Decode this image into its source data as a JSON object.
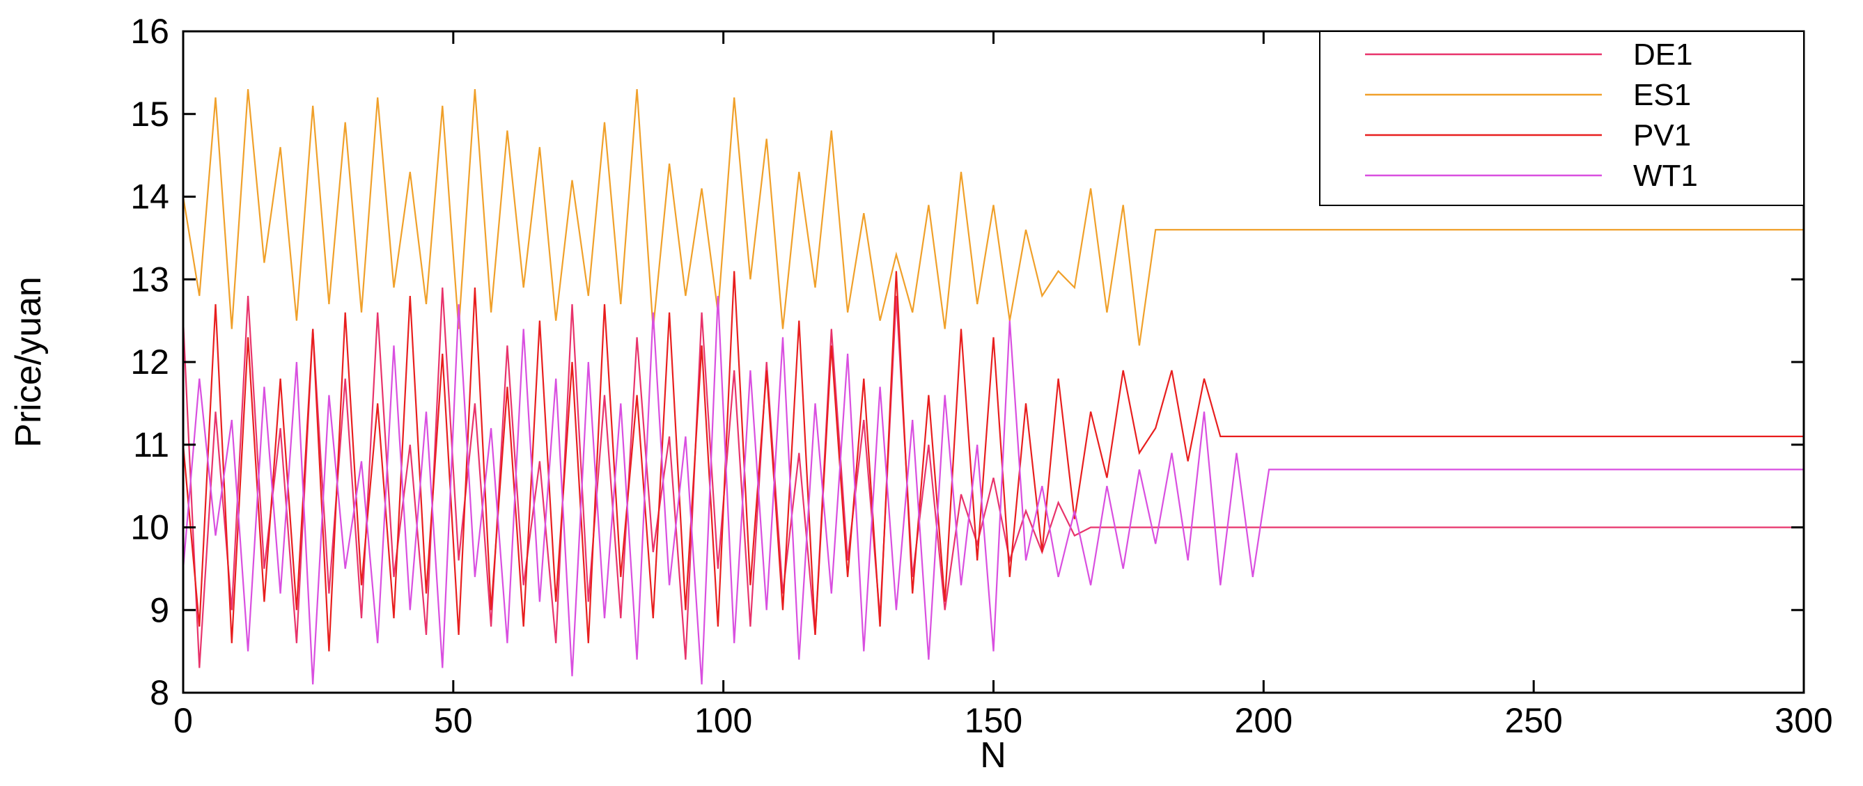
{
  "chart_data": {
    "type": "line",
    "xlabel": "N",
    "ylabel": "Price/yuan",
    "xlim": [
      0,
      300
    ],
    "ylim": [
      8,
      16
    ],
    "xticks": [
      0,
      50,
      100,
      150,
      200,
      250,
      300
    ],
    "yticks": [
      8,
      9,
      10,
      11,
      12,
      13,
      14,
      15,
      16
    ],
    "grid": false,
    "legend_position": "top-right",
    "series": [
      {
        "name": "DE1",
        "color": "#e8336b",
        "x": [
          0,
          3,
          6,
          9,
          12,
          15,
          18,
          21,
          24,
          27,
          30,
          33,
          36,
          39,
          42,
          45,
          48,
          51,
          54,
          57,
          60,
          63,
          66,
          69,
          72,
          75,
          78,
          81,
          84,
          87,
          90,
          93,
          96,
          99,
          102,
          105,
          108,
          111,
          114,
          117,
          120,
          123,
          126,
          129,
          132,
          135,
          138,
          141,
          144,
          147,
          150,
          153,
          156,
          159,
          162,
          165,
          168,
          171,
          174,
          177,
          180,
          190,
          200,
          250,
          300
        ],
        "values": [
          12.5,
          8.3,
          11.4,
          9.0,
          12.8,
          9.5,
          11.2,
          8.6,
          12.4,
          9.2,
          11.8,
          8.9,
          12.6,
          9.4,
          11.0,
          8.7,
          12.9,
          9.6,
          11.5,
          8.8,
          12.2,
          9.3,
          10.8,
          8.6,
          12.7,
          9.1,
          11.6,
          8.9,
          12.3,
          9.7,
          11.1,
          8.4,
          12.6,
          9.5,
          11.9,
          8.8,
          12.0,
          9.2,
          10.9,
          8.7,
          12.4,
          9.6,
          11.3,
          8.9,
          12.8,
          9.4,
          11.0,
          9.0,
          10.4,
          9.8,
          10.6,
          9.6,
          10.2,
          9.7,
          10.3,
          9.9,
          10.0,
          10.0,
          10.0,
          10.0,
          10.0,
          10.0,
          10.0,
          10.0,
          10.0
        ]
      },
      {
        "name": "ES1",
        "color": "#f0a02a",
        "x": [
          0,
          3,
          6,
          9,
          12,
          15,
          18,
          21,
          24,
          27,
          30,
          33,
          36,
          39,
          42,
          45,
          48,
          51,
          54,
          57,
          60,
          63,
          66,
          69,
          72,
          75,
          78,
          81,
          84,
          87,
          90,
          93,
          96,
          99,
          102,
          105,
          108,
          111,
          114,
          117,
          120,
          123,
          126,
          129,
          132,
          135,
          138,
          141,
          144,
          147,
          150,
          153,
          156,
          159,
          162,
          165,
          168,
          171,
          174,
          177,
          180,
          190,
          200,
          250,
          300
        ],
        "values": [
          14.0,
          12.8,
          15.2,
          12.4,
          15.3,
          13.2,
          14.6,
          12.5,
          15.1,
          12.7,
          14.9,
          12.6,
          15.2,
          12.9,
          14.3,
          12.7,
          15.1,
          12.4,
          15.3,
          12.6,
          14.8,
          12.9,
          14.6,
          12.5,
          14.2,
          12.8,
          14.9,
          12.7,
          15.3,
          12.4,
          14.4,
          12.8,
          14.1,
          12.6,
          15.2,
          13.0,
          14.7,
          12.4,
          14.3,
          12.9,
          14.8,
          12.6,
          13.8,
          12.5,
          13.3,
          12.6,
          13.9,
          12.4,
          14.3,
          12.7,
          13.9,
          12.5,
          13.6,
          12.8,
          13.1,
          12.9,
          14.1,
          12.6,
          13.9,
          12.2,
          13.6,
          13.6,
          13.6,
          13.6,
          13.6
        ]
      },
      {
        "name": "PV1",
        "color": "#e81e1e",
        "x": [
          0,
          3,
          6,
          9,
          12,
          15,
          18,
          21,
          24,
          27,
          30,
          33,
          36,
          39,
          42,
          45,
          48,
          51,
          54,
          57,
          60,
          63,
          66,
          69,
          72,
          75,
          78,
          81,
          84,
          87,
          90,
          93,
          96,
          99,
          102,
          105,
          108,
          111,
          114,
          117,
          120,
          123,
          126,
          129,
          132,
          135,
          138,
          141,
          144,
          147,
          150,
          153,
          156,
          159,
          162,
          165,
          168,
          171,
          174,
          177,
          180,
          183,
          186,
          189,
          192,
          200,
          250,
          300
        ],
        "values": [
          11.0,
          8.8,
          12.7,
          8.6,
          12.3,
          9.1,
          11.8,
          9.0,
          12.4,
          8.5,
          12.6,
          9.3,
          11.5,
          8.9,
          12.8,
          9.2,
          12.1,
          8.7,
          12.9,
          9.0,
          11.7,
          8.8,
          12.5,
          9.1,
          12.0,
          8.6,
          12.7,
          9.4,
          11.6,
          8.9,
          12.6,
          9.0,
          12.2,
          8.8,
          13.1,
          9.3,
          11.9,
          9.0,
          12.5,
          8.7,
          12.2,
          9.4,
          11.8,
          8.8,
          13.1,
          9.2,
          11.6,
          9.1,
          12.4,
          9.6,
          12.3,
          9.4,
          11.5,
          9.7,
          11.8,
          10.1,
          11.4,
          10.6,
          11.9,
          10.9,
          11.2,
          11.9,
          10.8,
          11.8,
          11.1,
          11.1,
          11.1,
          11.1
        ]
      },
      {
        "name": "WT1",
        "color": "#d94fe0",
        "x": [
          0,
          3,
          6,
          9,
          12,
          15,
          18,
          21,
          24,
          27,
          30,
          33,
          36,
          39,
          42,
          45,
          48,
          51,
          54,
          57,
          60,
          63,
          66,
          69,
          72,
          75,
          78,
          81,
          84,
          87,
          90,
          93,
          96,
          99,
          102,
          105,
          108,
          111,
          114,
          117,
          120,
          123,
          126,
          129,
          132,
          135,
          138,
          141,
          144,
          147,
          150,
          153,
          156,
          159,
          162,
          165,
          168,
          171,
          174,
          177,
          180,
          183,
          186,
          189,
          192,
          195,
          198,
          201,
          250,
          300
        ],
        "values": [
          9.5,
          11.8,
          9.9,
          11.3,
          8.5,
          11.7,
          9.2,
          12.0,
          8.1,
          11.6,
          9.5,
          10.8,
          8.6,
          12.2,
          9.0,
          11.4,
          8.3,
          12.7,
          9.4,
          11.2,
          8.6,
          12.4,
          9.1,
          11.8,
          8.2,
          12.0,
          8.9,
          11.5,
          8.4,
          12.6,
          9.3,
          11.1,
          8.1,
          12.8,
          8.6,
          11.9,
          9.0,
          12.3,
          8.4,
          11.5,
          9.2,
          12.1,
          8.5,
          11.7,
          9.0,
          11.3,
          8.4,
          11.6,
          9.3,
          11.0,
          8.5,
          12.5,
          9.6,
          10.5,
          9.4,
          10.2,
          9.3,
          10.5,
          9.5,
          10.7,
          9.8,
          10.9,
          9.6,
          11.4,
          9.3,
          10.9,
          9.4,
          10.7,
          10.7,
          10.7
        ]
      }
    ]
  }
}
